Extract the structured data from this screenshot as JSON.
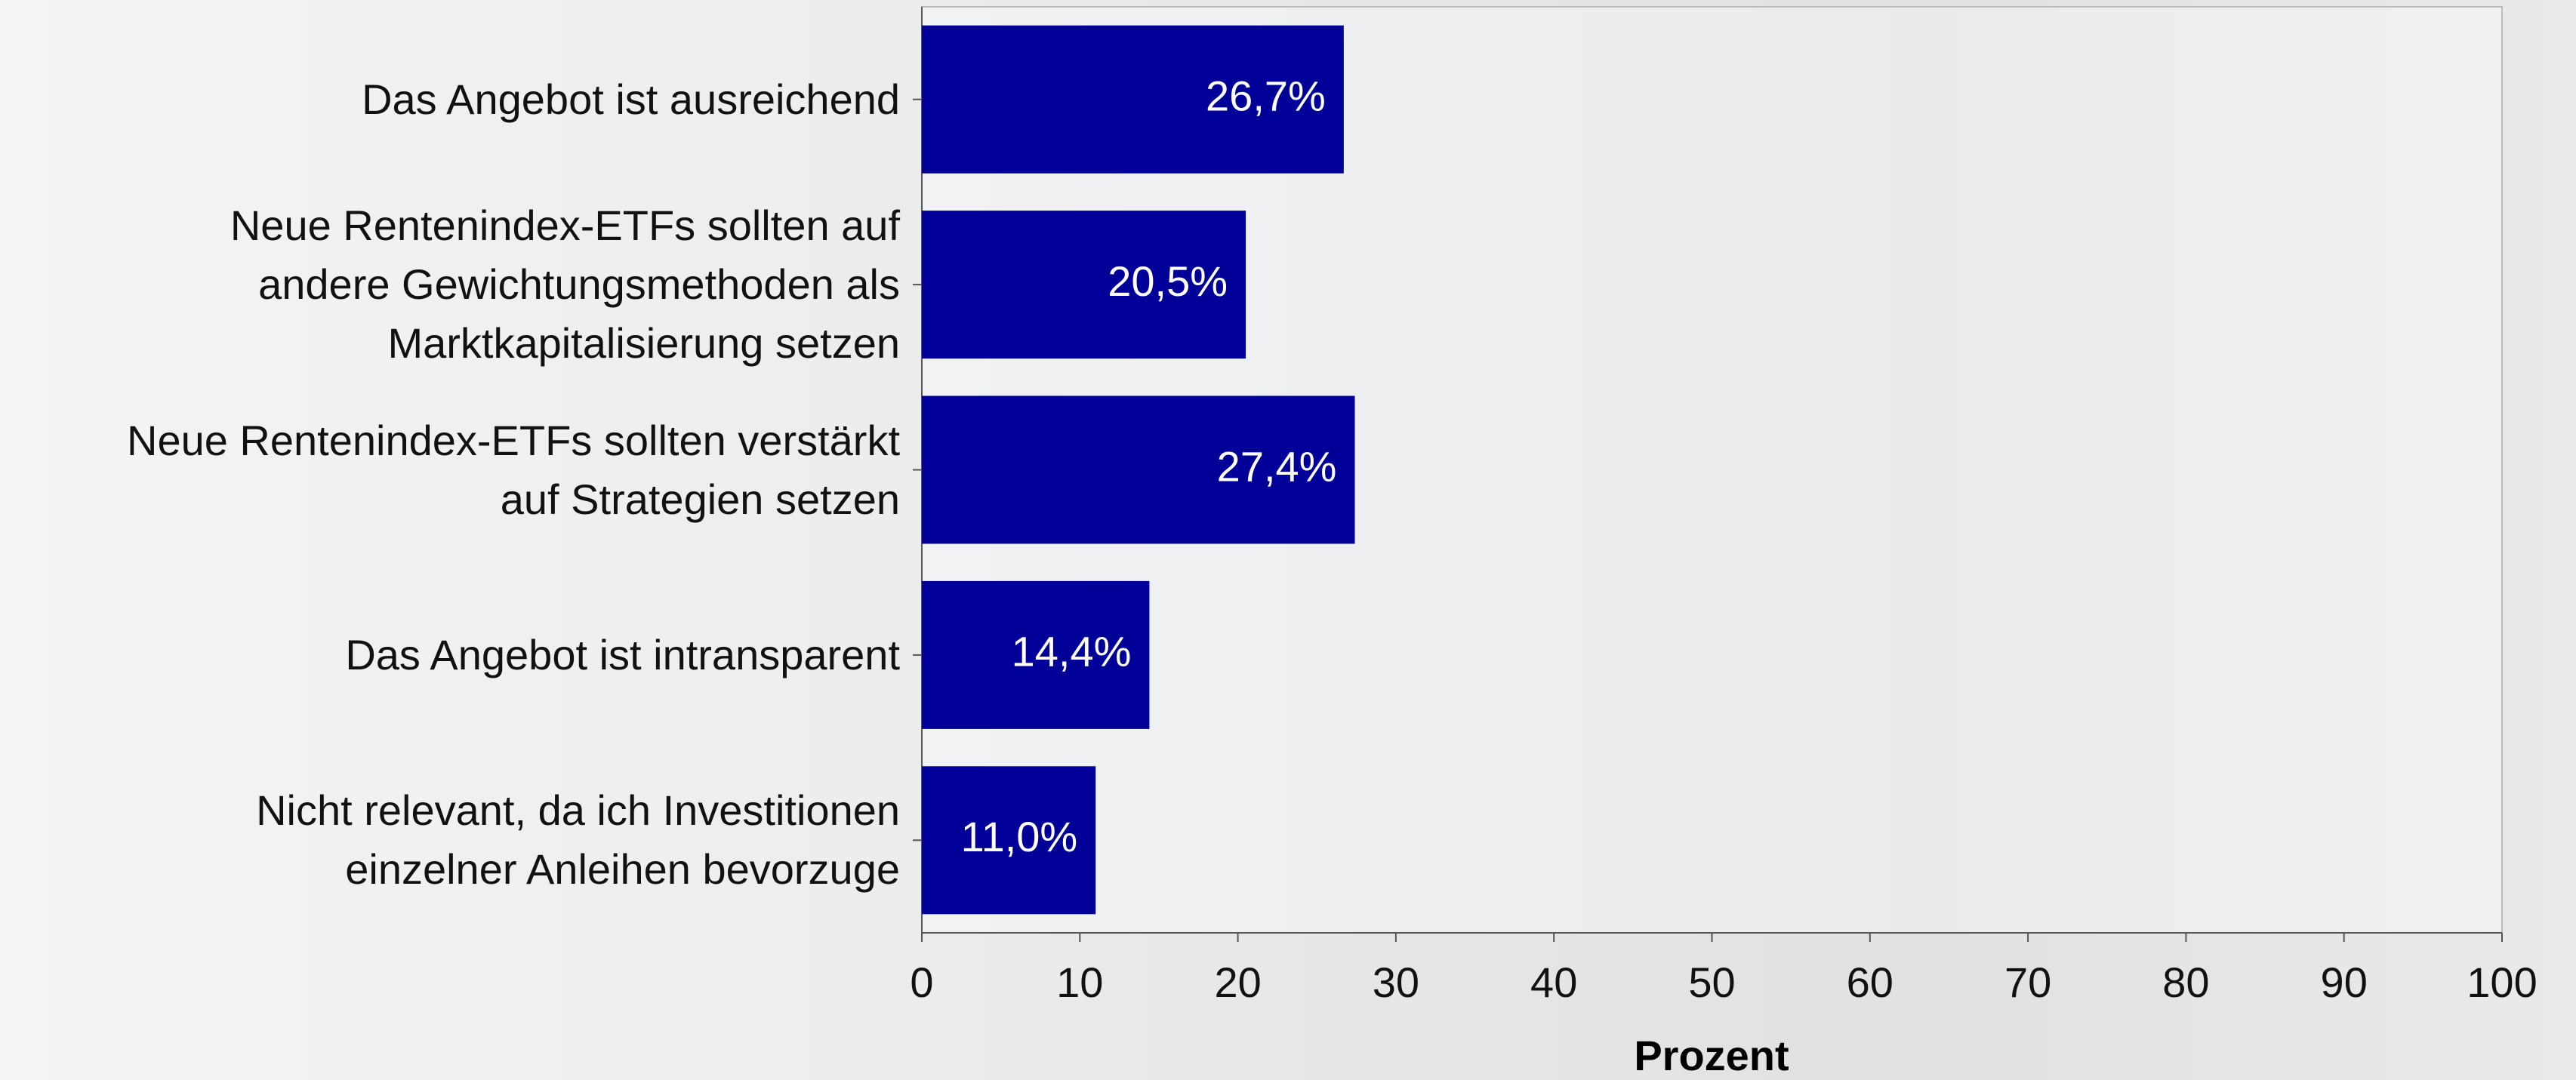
{
  "chart_data": {
    "type": "bar",
    "orientation": "horizontal",
    "categories": [
      "Das Angebot ist ausreichend",
      "Neue Rentenindex-ETFs sollten auf\nandere Gewichtungsmethoden als\nMarktkapitalisierung setzen",
      "Neue Rentenindex-ETFs sollten verstärkt\nauf Strategien setzen",
      "Das Angebot ist intransparent",
      "Nicht relevant, da ich Investitionen\neinzelner Anleihen bevorzuge"
    ],
    "values": [
      26.7,
      20.5,
      27.4,
      14.4,
      11.0
    ],
    "value_labels": [
      "26,7%",
      "20,5%",
      "27,4%",
      "14,4%",
      "11,0%"
    ],
    "color": "#000099",
    "x_label": "Prozent",
    "xlim": [
      0,
      100
    ],
    "xticks": [
      0,
      10,
      20,
      30,
      40,
      50,
      60,
      70,
      80,
      90,
      100
    ],
    "grid": false
  }
}
